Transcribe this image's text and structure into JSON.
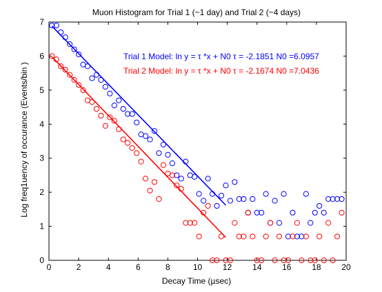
{
  "chart_data": {
    "type": "scatter",
    "title": "Muon Histogram for Trial 1 (~1 day) and Trial 2 (~4 days)",
    "xlabel": "Decay Time (µsec)",
    "ylabel": "Log freq1uency of occurance (Events/bin )",
    "xlim": [
      0,
      20
    ],
    "ylim": [
      0,
      7
    ],
    "xticks": [
      "0",
      "2",
      "4",
      "6",
      "8",
      "10",
      "12",
      "14",
      "16",
      "18",
      "20"
    ],
    "yticks": [
      "0",
      "1",
      "2",
      "3",
      "4",
      "5",
      "6",
      "7"
    ],
    "grid": false,
    "legend_position": "top-right",
    "series": [
      {
        "color": "#0000ff",
        "label": "Trial 1 Model: ln y =  τ *x + N0 τ = -2.1851 N0 =6.0957",
        "x": [
          0.2,
          0.5,
          0.8,
          1.1,
          1.4,
          1.7,
          2.0,
          2.3,
          2.6,
          2.9,
          3.2,
          3.5,
          3.8,
          4.1,
          4.4,
          4.7,
          5.0,
          5.3,
          5.6,
          5.9,
          6.2,
          6.5,
          6.8,
          7.1,
          7.4,
          7.7,
          8.0,
          8.3,
          8.6,
          8.9,
          9.2,
          9.5,
          9.8,
          10.1,
          10.4,
          10.7,
          11.0,
          11.3,
          11.6,
          11.9,
          12.2,
          12.5,
          12.8,
          13.1,
          13.4,
          13.7,
          14.0,
          14.3,
          14.6,
          14.9,
          15.2,
          15.5,
          15.8,
          16.1,
          16.4,
          16.7,
          17.0,
          17.3,
          17.6,
          17.9,
          18.2,
          18.5,
          18.8,
          19.1,
          19.4,
          19.7
        ],
        "y": [
          6.9,
          6.9,
          6.7,
          6.55,
          6.35,
          6.2,
          6.05,
          5.75,
          5.7,
          5.35,
          5.45,
          5.3,
          5.1,
          4.9,
          4.55,
          4.7,
          4.45,
          4.3,
          4.3,
          4.05,
          3.7,
          3.65,
          3.55,
          3.8,
          3.15,
          3.4,
          3.1,
          2.85,
          2.5,
          2.4,
          2.9,
          2.5,
          2.45,
          1.95,
          1.75,
          2.4,
          1.95,
          1.6,
          1.9,
          2.2,
          1.75,
          2.3,
          1.8,
          1.8,
          1.4,
          1.8,
          1.4,
          1.4,
          1.95,
          1.1,
          1.75,
          1.1,
          1.95,
          0.7,
          1.4,
          0.7,
          0.7,
          1.95,
          1.1,
          1.4,
          1.6,
          1.4,
          1.8,
          1.8,
          1.8,
          1.8
        ]
      },
      {
        "color": "#ff0000",
        "label": "Trial 2 Model: ln y =  τ *x + N0 τ = -2.1674 N0 =7.0436",
        "x": [
          0.2,
          0.5,
          0.8,
          1.1,
          1.4,
          1.7,
          2.0,
          2.3,
          2.6,
          2.9,
          3.2,
          3.5,
          3.8,
          4.1,
          4.4,
          4.7,
          5.0,
          5.3,
          5.6,
          5.9,
          6.2,
          6.5,
          6.8,
          7.1,
          7.4,
          7.7,
          8.0,
          8.3,
          8.6,
          8.9,
          9.2,
          9.5,
          9.8,
          10.1,
          10.4,
          10.7,
          11.0,
          11.3,
          11.6,
          11.9,
          12.2,
          12.5,
          12.8,
          13.1,
          13.4,
          13.7,
          14.0,
          14.3,
          14.6,
          14.9,
          15.2,
          15.5,
          15.8,
          16.1,
          16.4,
          16.7,
          17.0,
          17.3,
          17.6,
          17.9,
          18.2,
          18.5,
          18.8,
          19.1,
          19.4,
          19.7
        ],
        "y": [
          6.0,
          5.9,
          5.7,
          5.6,
          5.45,
          5.3,
          5.15,
          5.0,
          4.7,
          4.65,
          4.45,
          4.25,
          3.95,
          4.2,
          4.1,
          3.85,
          3.55,
          3.45,
          3.3,
          3.15,
          2.9,
          2.4,
          2.05,
          2.3,
          1.8,
          2.8,
          2.55,
          2.5,
          2.2,
          2.1,
          1.1,
          1.1,
          1.1,
          0.7,
          1.4,
          1.6,
          0.0,
          0.0,
          0.7,
          0.0,
          0.0,
          1.1,
          0.7,
          0.7,
          1.4,
          0.7,
          0.0,
          0.0,
          0.7,
          1.1,
          0.0,
          0.7,
          0.0,
          0.0,
          0.7,
          1.1,
          0.0,
          0.7,
          0.0,
          0.0,
          0.7,
          0.0,
          1.1,
          0.0,
          0.7,
          1.4
        ]
      }
    ],
    "fit_lines": [
      {
        "series": 0,
        "color": "#0000ff",
        "x": [
          0.2,
          11.9
        ],
        "y": [
          6.88,
          1.62
        ]
      },
      {
        "series": 1,
        "color": "#ff0000",
        "x": [
          0.2,
          11.9
        ],
        "y": [
          5.98,
          0.67
        ]
      }
    ]
  }
}
